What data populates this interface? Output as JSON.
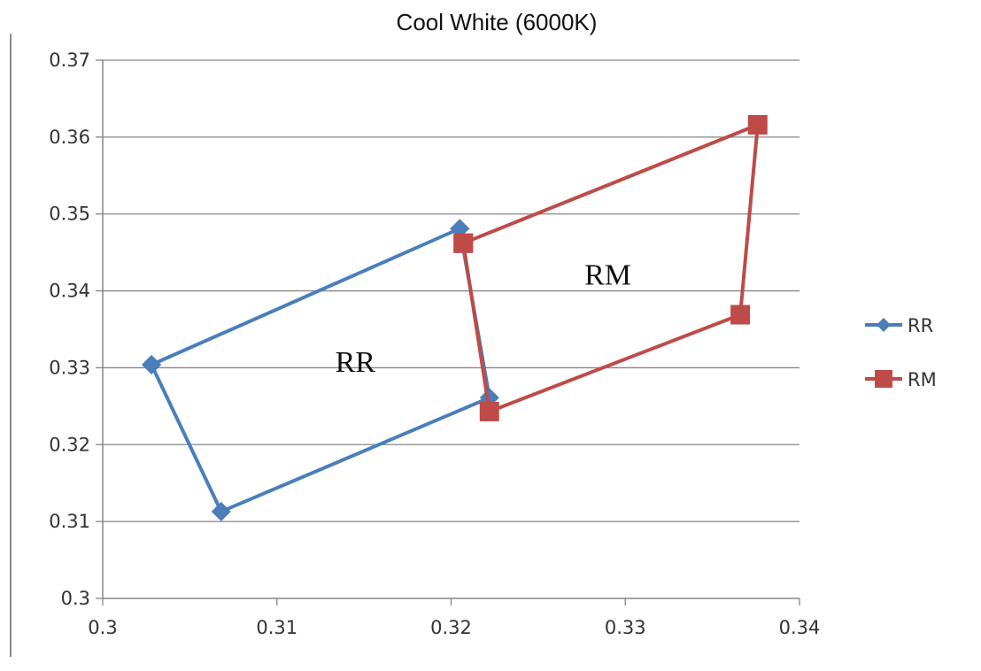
{
  "chart_data": {
    "type": "scatter",
    "title": "Cool White (6000K)",
    "xlabel": "",
    "ylabel": "",
    "xlim": [
      0.3,
      0.34
    ],
    "ylim": [
      0.3,
      0.37
    ],
    "xticks": [
      0.3,
      0.31,
      0.32,
      0.33,
      0.34
    ],
    "yticks": [
      0.3,
      0.31,
      0.32,
      0.33,
      0.34,
      0.35,
      0.36,
      0.37
    ],
    "xtick_labels": [
      "0.3",
      "0.31",
      "0.32",
      "0.33",
      "0.34"
    ],
    "ytick_labels": [
      "0.3",
      "0.31",
      "0.32",
      "0.33",
      "0.34",
      "0.35",
      "0.36",
      "0.37"
    ],
    "grid": "horizontal",
    "legend_position": "right",
    "series": [
      {
        "name": "RR",
        "color": "#4a7ebb",
        "marker": "diamond",
        "x": [
          0.3028,
          0.3205,
          0.3222,
          0.3068,
          0.3028
        ],
        "y": [
          0.3304,
          0.3481,
          0.3261,
          0.3113,
          0.3304
        ]
      },
      {
        "name": "RM",
        "color": "#be4b48",
        "marker": "square",
        "x": [
          0.3207,
          0.3376,
          0.3366,
          0.3222,
          0.3207
        ],
        "y": [
          0.3462,
          0.3616,
          0.3369,
          0.3243,
          0.3462
        ]
      }
    ],
    "annotations": [
      {
        "text": "RR",
        "x": 0.3145,
        "y": 0.3295
      },
      {
        "text": "RM",
        "x": 0.329,
        "y": 0.3408
      }
    ]
  }
}
